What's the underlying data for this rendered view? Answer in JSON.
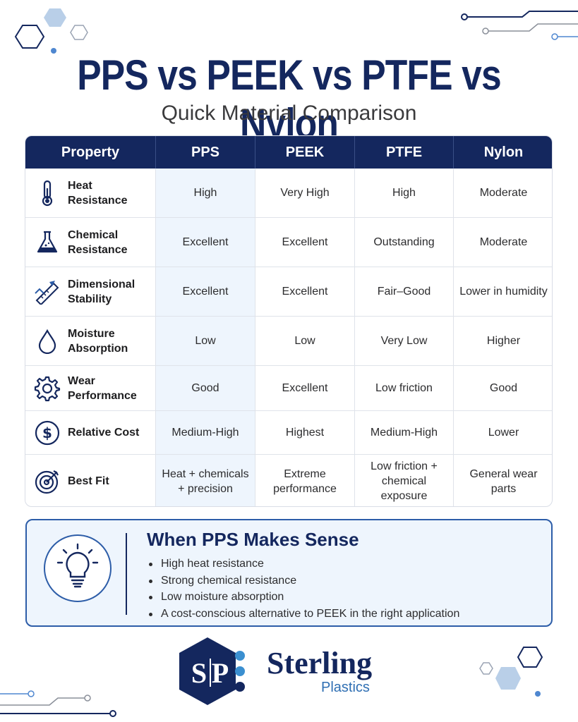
{
  "header": {
    "title": "PPS vs PEEK vs PTFE vs Nylon",
    "subtitle": "Quick Material Comparison"
  },
  "table": {
    "columns": [
      "Property",
      "PPS",
      "PEEK",
      "PTFE",
      "Nylon"
    ],
    "rows": [
      {
        "icon": "thermometer-icon",
        "property": "Heat Resistance",
        "values": [
          "High",
          "Very High",
          "High",
          "Moderate"
        ]
      },
      {
        "icon": "flask-icon",
        "property": "Chemical Resistance",
        "values": [
          "Excellent",
          "Excellent",
          "Outstanding",
          "Moderate"
        ]
      },
      {
        "icon": "caliper-icon",
        "property": "Dimensional Stability",
        "values": [
          "Excellent",
          "Excellent",
          "Fair–Good",
          "Lower in humidity"
        ]
      },
      {
        "icon": "water-drop-icon",
        "property": "Moisture Absorption",
        "values": [
          "Low",
          "Low",
          "Very Low",
          "Higher"
        ]
      },
      {
        "icon": "gear-icon",
        "property": "Wear Performance",
        "values": [
          "Good",
          "Excellent",
          "Low friction",
          "Good"
        ]
      },
      {
        "icon": "dollar-icon",
        "property": "Relative Cost",
        "values": [
          "Medium-High",
          "Highest",
          "Medium-High",
          "Lower"
        ]
      },
      {
        "icon": "target-icon",
        "property": "Best Fit",
        "values": [
          "Heat + chemicals + precision",
          "Extreme performance",
          "Low friction + chemical exposure",
          "General wear parts"
        ]
      }
    ]
  },
  "callout": {
    "icon": "lightbulb-icon",
    "title": "When PPS Makes Sense",
    "bullets": [
      "High heat resistance",
      "Strong chemical resistance",
      "Low moisture absorption",
      "A cost-conscious alternative to PEEK in the right application"
    ]
  },
  "brand": {
    "monogram_left": "S",
    "monogram_right": "P",
    "name": "Sterling",
    "sub": "Plastics"
  },
  "colors": {
    "navy": "#14275e",
    "accent_blue": "#2d5da8",
    "light_blue": "#eef5fd"
  }
}
